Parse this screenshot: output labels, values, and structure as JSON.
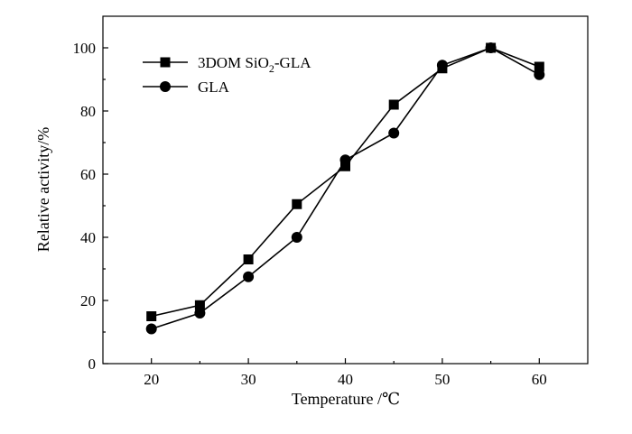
{
  "chart_data": {
    "type": "line",
    "xlabel": "Temperature /℃",
    "ylabel": "Relative activity/%",
    "xlim": [
      15,
      65
    ],
    "ylim": [
      0,
      110
    ],
    "xticks": [
      20,
      30,
      40,
      50,
      60
    ],
    "yticks": [
      0,
      20,
      40,
      60,
      80,
      100
    ],
    "grid": false,
    "legend_position": "top-left",
    "x": [
      20,
      25,
      30,
      35,
      40,
      45,
      50,
      55,
      60
    ],
    "series": [
      {
        "name": "3DOM SiO2-GLA",
        "name_main": "3DOM SiO",
        "name_sub": "2",
        "name_tail": "-GLA",
        "marker": "square",
        "values": [
          15,
          18.5,
          33,
          50.5,
          62.5,
          82,
          93.5,
          100,
          94
        ]
      },
      {
        "name": "GLA",
        "marker": "circle",
        "values": [
          11,
          16,
          27.5,
          40,
          64.5,
          73,
          94.5,
          100,
          91.5
        ]
      }
    ],
    "colors": {
      "line": "#000000",
      "marker": "#000000"
    }
  }
}
